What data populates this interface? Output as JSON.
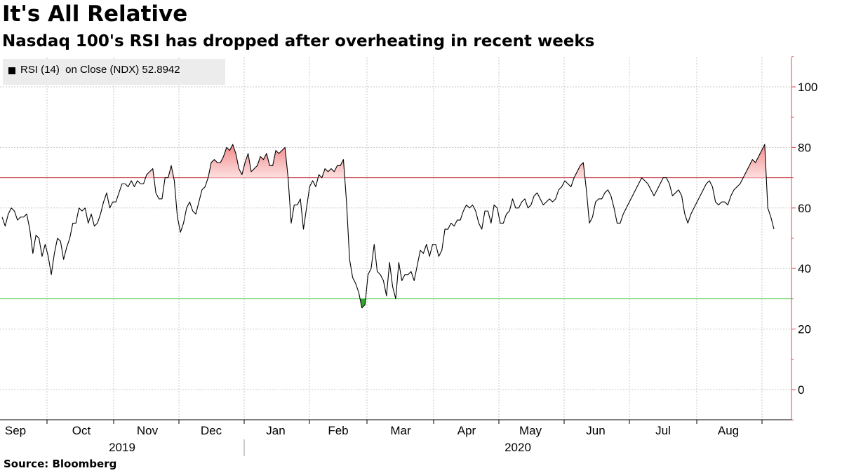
{
  "header": {
    "title": "It's All Relative",
    "subtitle": "Nasdaq 100's RSI has dropped after overheating in recent weeks"
  },
  "footer": {
    "source": "Source: Bloomberg"
  },
  "legend": {
    "label": "RSI (14)  on Close (NDX)",
    "last_value": "52.8942"
  },
  "colors": {
    "line": "#000000",
    "overbought_line": "#c0202a",
    "oversold_line": "#1fbf1f",
    "overbought_fill": "#f28b8b",
    "oversold_fill": "#2fa82f",
    "axis_right": "#e0454f",
    "grid": "#c8c8c8"
  },
  "chart_data": {
    "type": "line",
    "title": "It's All Relative",
    "subtitle": "Nasdaq 100's RSI has dropped after overheating in recent weeks",
    "xlabel": "",
    "ylabel": "",
    "ylim": [
      -10,
      110
    ],
    "yticks": [
      0,
      20,
      40,
      60,
      80,
      100
    ],
    "y_axis_side": "right",
    "grid": true,
    "legend_position": "top-left",
    "reference_lines": [
      {
        "name": "overbought",
        "value": 70
      },
      {
        "name": "oversold",
        "value": 30
      }
    ],
    "x_month_labels": [
      "Sep",
      "Oct",
      "Nov",
      "Dec",
      "Jan",
      "Feb",
      "Mar",
      "Apr",
      "May",
      "Jun",
      "Jul",
      "Aug"
    ],
    "x_year_labels": [
      "2019",
      "2020"
    ],
    "series": [
      {
        "name": "RSI (14)  on Close (NDX)",
        "values": [
          57,
          54,
          58,
          60,
          59,
          56,
          57,
          57,
          58,
          53,
          45,
          51,
          50,
          44,
          48,
          44,
          38,
          45,
          50,
          49,
          43,
          47,
          50,
          55,
          55,
          60,
          59,
          60,
          55,
          58,
          54,
          55,
          58,
          62,
          65,
          60,
          62,
          62,
          65,
          68,
          68,
          67,
          69,
          67,
          69,
          68,
          68,
          71,
          72,
          73,
          65,
          63,
          63,
          70,
          70,
          74,
          69,
          57,
          52,
          55,
          60,
          62,
          59,
          58,
          62,
          66,
          67,
          70,
          75,
          76,
          75,
          75,
          77,
          80,
          79,
          81,
          78,
          73,
          71,
          75,
          78,
          72,
          73,
          74,
          77,
          76,
          78,
          74,
          74,
          79,
          78,
          79,
          80,
          70,
          55,
          61,
          61,
          63,
          53,
          60,
          67,
          69,
          67,
          71,
          70,
          73,
          72,
          73,
          72,
          74,
          74,
          76,
          62,
          43,
          37,
          35,
          32,
          27,
          28,
          38,
          40,
          48,
          39,
          38,
          36,
          31,
          42,
          34,
          30,
          42,
          36,
          38,
          38,
          39,
          36,
          41,
          46,
          45,
          48,
          44,
          48,
          48,
          44,
          46,
          53,
          53,
          55,
          54,
          56,
          56,
          59,
          61,
          60,
          61,
          59,
          55,
          53,
          59,
          59,
          55,
          61,
          60,
          55,
          55,
          58,
          59,
          63,
          60,
          60,
          62,
          63,
          60,
          61,
          64,
          65,
          63,
          61,
          62,
          63,
          62,
          63,
          66,
          67,
          69,
          68,
          67,
          70,
          72,
          74,
          75,
          66,
          55,
          57,
          62,
          63,
          63,
          65,
          66,
          64,
          60,
          55,
          55,
          58,
          60,
          62,
          64,
          66,
          68,
          70,
          69,
          68,
          66,
          64,
          66,
          68,
          70,
          70,
          68,
          64,
          65,
          66,
          64,
          58,
          55,
          58,
          60,
          62,
          64,
          66,
          68,
          69,
          67,
          62,
          61,
          62,
          62,
          61,
          64,
          66,
          67,
          68,
          70,
          72,
          74,
          76,
          75,
          77,
          79,
          81,
          60,
          57,
          53
        ]
      }
    ]
  }
}
